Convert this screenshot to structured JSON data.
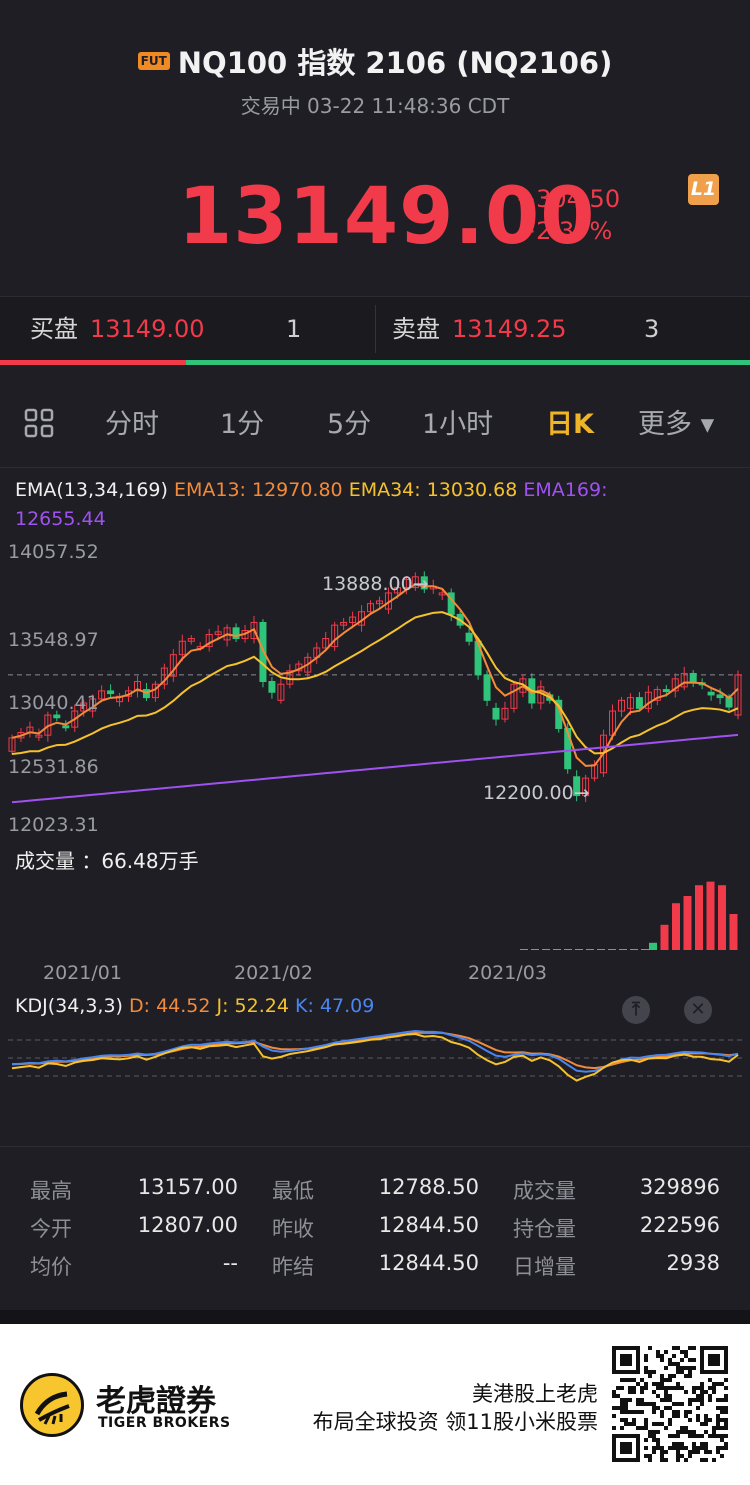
{
  "header": {
    "badge": "FUT",
    "title": "NQ100 指数 2106 (NQ2106)",
    "status": "交易中 03-22 11:48:36 CDT",
    "price": "13149.00",
    "change_abs": "+304.50",
    "change_pct": "+2.37%",
    "level_badge": "L1"
  },
  "bidask": {
    "bid_label": "买盘",
    "bid_price": "13149.00",
    "bid_qty": "1",
    "ask_label": "卖盘",
    "ask_price": "13149.25",
    "ask_qty": "3",
    "bid_ratio": 0.248
  },
  "tabs": [
    "分时",
    "1分",
    "5分",
    "1小时",
    "日K",
    "更多 ▾"
  ],
  "active_tab": "日K",
  "chart": {
    "ema_legend": {
      "name": "EMA(13,34,169)",
      "ema13": "EMA13: 12970.80",
      "ema34": "EMA34: 13030.68",
      "ema169": "EMA169:",
      "ema169_val": "12655.44"
    },
    "y_labels": [
      "14057.52",
      "13548.97",
      "13040.41",
      "12531.86",
      "12023.31"
    ],
    "high_marker": "13888.00→",
    "low_marker": "12200.00→",
    "volume_label": "成交量 ：66.48万手",
    "dates": [
      "2021/01",
      "2021/02",
      "2021/03"
    ],
    "kdj": {
      "name": "KDJ(34,3,3)",
      "d": "D: 44.52",
      "j": "J: 52.24",
      "k": "K: 47.09"
    }
  },
  "chart_data": {
    "type": "candlestick",
    "ylim": [
      12023.31,
      14057.52
    ],
    "current_price_line": 13149.0,
    "colors": {
      "up": "#f13a4a",
      "down": "#2fc47a",
      "ema13": "#f28a3a",
      "ema34": "#f5c22e",
      "ema169": "#a052f0"
    }
  },
  "stats": [
    [
      {
        "l": "最高",
        "v": "13157.00"
      },
      {
        "l": "最低",
        "v": "12788.50"
      },
      {
        "l": "成交量",
        "v": "329896"
      }
    ],
    [
      {
        "l": "今开",
        "v": "12807.00"
      },
      {
        "l": "昨收",
        "v": "12844.50"
      },
      {
        "l": "持仓量",
        "v": "222596"
      }
    ],
    [
      {
        "l": "均价",
        "v": "--"
      },
      {
        "l": "昨结",
        "v": "12844.50"
      },
      {
        "l": "日增量",
        "v": "2938"
      }
    ]
  ],
  "footer": {
    "brand_cn": "老虎證券",
    "brand_en": "TIGER BROKERS",
    "promo_line1": "美港股上老虎",
    "promo_line2": "布局全球投资 领11股小米股票"
  }
}
